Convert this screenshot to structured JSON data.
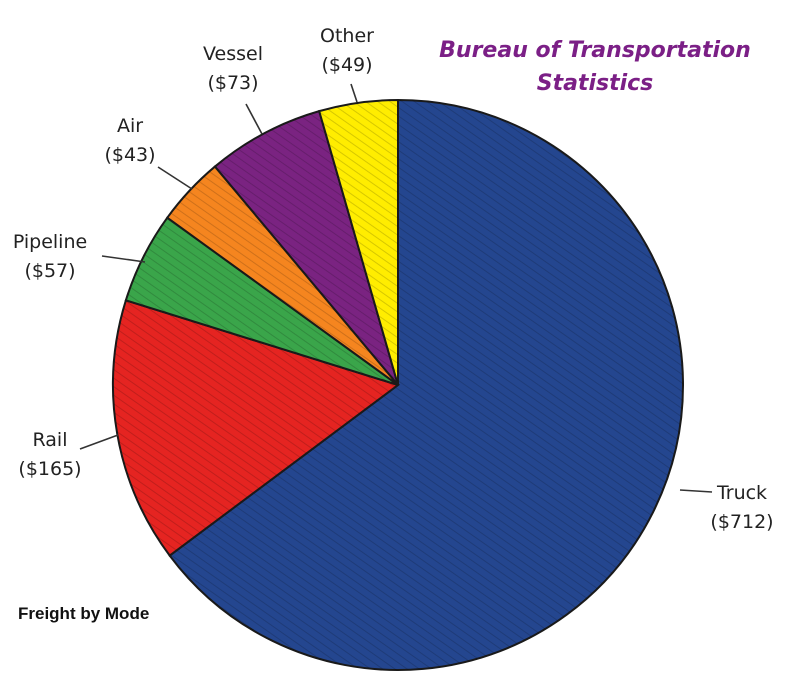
{
  "source_title": {
    "line1": "Bureau of Transportation",
    "line2": "Statistics"
  },
  "footer_caption": "Freight by Mode",
  "colors": {
    "truck": "#24468f",
    "rail": "#e52421",
    "pipeline": "#3aa54a",
    "air": "#f5851f",
    "vessel": "#7a2381",
    "other": "#ffed00",
    "source_title": "#7b1f86"
  },
  "chart_data": {
    "type": "pie",
    "title": "",
    "start": "top (12 o'clock), clockwise",
    "slices": [
      {
        "key": "truck",
        "label": "Truck",
        "value_label": "($712)",
        "value": 712
      },
      {
        "key": "rail",
        "label": "Rail",
        "value_label": "($165)",
        "value": 165
      },
      {
        "key": "pipeline",
        "label": "Pipeline",
        "value_label": "($57)",
        "value": 57
      },
      {
        "key": "air",
        "label": "Air",
        "value_label": "($43)",
        "value": 43
      },
      {
        "key": "vessel",
        "label": "Vessel",
        "value_label": "($73)",
        "value": 73
      },
      {
        "key": "other",
        "label": "Other",
        "value_label": "($49)",
        "value": 49
      }
    ]
  }
}
